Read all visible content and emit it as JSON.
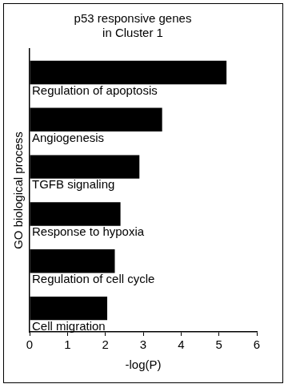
{
  "chart_data": {
    "type": "bar",
    "orientation": "horizontal",
    "title": [
      "p53 responsive genes",
      "in Cluster 1"
    ],
    "y_label": "GO biological process",
    "x_label": "-log(P)",
    "categories": [
      "Regulation of apoptosis",
      "Angiogenesis",
      "TGFB signaling",
      "Response to hypoxia",
      "Regulation of cell cycle",
      "Cell migration"
    ],
    "values": [
      5.2,
      3.5,
      2.9,
      2.4,
      2.25,
      2.05
    ],
    "color": "#000000",
    "xlim": [
      0,
      6
    ],
    "xticks": [
      0,
      1,
      2,
      3,
      4,
      5,
      6
    ],
    "grid": false,
    "tick_labels": "x"
  }
}
